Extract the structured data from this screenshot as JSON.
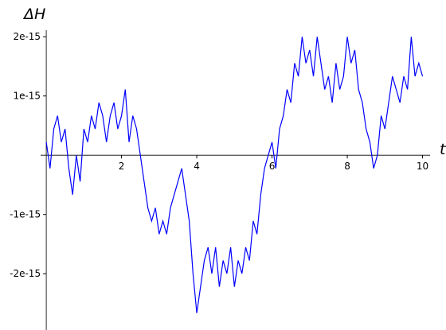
{
  "chart_data": {
    "type": "line",
    "xlabel": "t",
    "ylabel": "ΔH",
    "x": [
      0,
      0.1,
      0.2,
      0.3,
      0.4,
      0.5,
      0.6,
      0.7,
      0.8,
      0.9,
      1,
      1.1,
      1.2,
      1.3,
      1.4,
      1.5,
      1.6,
      1.7,
      1.8,
      1.9,
      2,
      2.1,
      2.2,
      2.3,
      2.4,
      2.5,
      2.6,
      2.7,
      2.8,
      2.9,
      3,
      3.1,
      3.2,
      3.3,
      3.4,
      3.5,
      3.6,
      3.7,
      3.8,
      3.9,
      4,
      4.1,
      4.2,
      4.3,
      4.4,
      4.5,
      4.6,
      4.7,
      4.8,
      4.9,
      5,
      5.1,
      5.2,
      5.3,
      5.4,
      5.5,
      5.6,
      5.7,
      5.8,
      5.9,
      6,
      6.1,
      6.2,
      6.3,
      6.4,
      6.5,
      6.6,
      6.7,
      6.8,
      6.9,
      7,
      7.1,
      7.2,
      7.3,
      7.4,
      7.5,
      7.6,
      7.7,
      7.8,
      7.9,
      8,
      8.1,
      8.2,
      8.3,
      8.4,
      8.5,
      8.6,
      8.7,
      8.8,
      8.9,
      9,
      9.1,
      9.2,
      9.3,
      9.4,
      9.5,
      9.6,
      9.7,
      9.8,
      9.9,
      10
    ],
    "series": [
      {
        "color": "#0000ff",
        "values": [
          2.22e-16,
          -2.22e-16,
          4.44e-16,
          6.66e-16,
          2.22e-16,
          4.44e-16,
          -2.22e-16,
          -6.66e-16,
          0,
          -4.44e-16,
          4.44e-16,
          2.22e-16,
          6.66e-16,
          4.44e-16,
          8.88e-16,
          6.66e-16,
          2.22e-16,
          6.66e-16,
          8.88e-16,
          4.44e-16,
          6.66e-16,
          1.11e-15,
          2.22e-16,
          6.66e-16,
          4.44e-16,
          0,
          -4.44e-16,
          -8.88e-16,
          -1.11e-15,
          -8.88e-16,
          -1.332e-15,
          -1.11e-15,
          -1.332e-15,
          -8.88e-16,
          -6.66e-16,
          -4.44e-16,
          -2.22e-16,
          -6.66e-16,
          -1.11e-15,
          -1.998e-15,
          -2.664e-15,
          -2.22e-15,
          -1.776e-15,
          -1.554e-15,
          -1.998e-15,
          -1.554e-15,
          -2.22e-15,
          -1.776e-15,
          -1.998e-15,
          -1.554e-15,
          -2.22e-15,
          -1.776e-15,
          -1.998e-15,
          -1.554e-15,
          -1.776e-15,
          -1.11e-15,
          -1.332e-15,
          -6.66e-16,
          -2.22e-16,
          0,
          2.22e-16,
          -2.22e-16,
          4.44e-16,
          6.66e-16,
          1.11e-15,
          8.88e-16,
          1.554e-15,
          1.332e-15,
          1.998e-15,
          1.554e-15,
          1.776e-15,
          1.332e-15,
          1.998e-15,
          1.554e-15,
          1.11e-15,
          1.332e-15,
          8.88e-16,
          1.554e-15,
          1.11e-15,
          1.332e-15,
          1.998e-15,
          1.554e-15,
          1.776e-15,
          1.11e-15,
          8.88e-16,
          4.44e-16,
          2.22e-16,
          -2.22e-16,
          0,
          6.66e-16,
          4.44e-16,
          8.88e-16,
          1.332e-15,
          1.11e-15,
          8.88e-16,
          1.332e-15,
          1.11e-15,
          1.998e-15,
          1.332e-15,
          1.554e-15,
          1.332e-15
        ]
      }
    ],
    "xlim": [
      -0.15,
      10.2
    ],
    "ylim": [
      -2.95e-15,
      2.11e-15
    ],
    "xticks": [
      2,
      4,
      6,
      8,
      10
    ],
    "yticks": [
      {
        "value": -2e-15,
        "label": "-2e-15"
      },
      {
        "value": -1e-15,
        "label": "-1e-15"
      },
      {
        "value": 1e-15,
        "label": "1e-15"
      },
      {
        "value": 2e-15,
        "label": "2e-15"
      }
    ]
  }
}
